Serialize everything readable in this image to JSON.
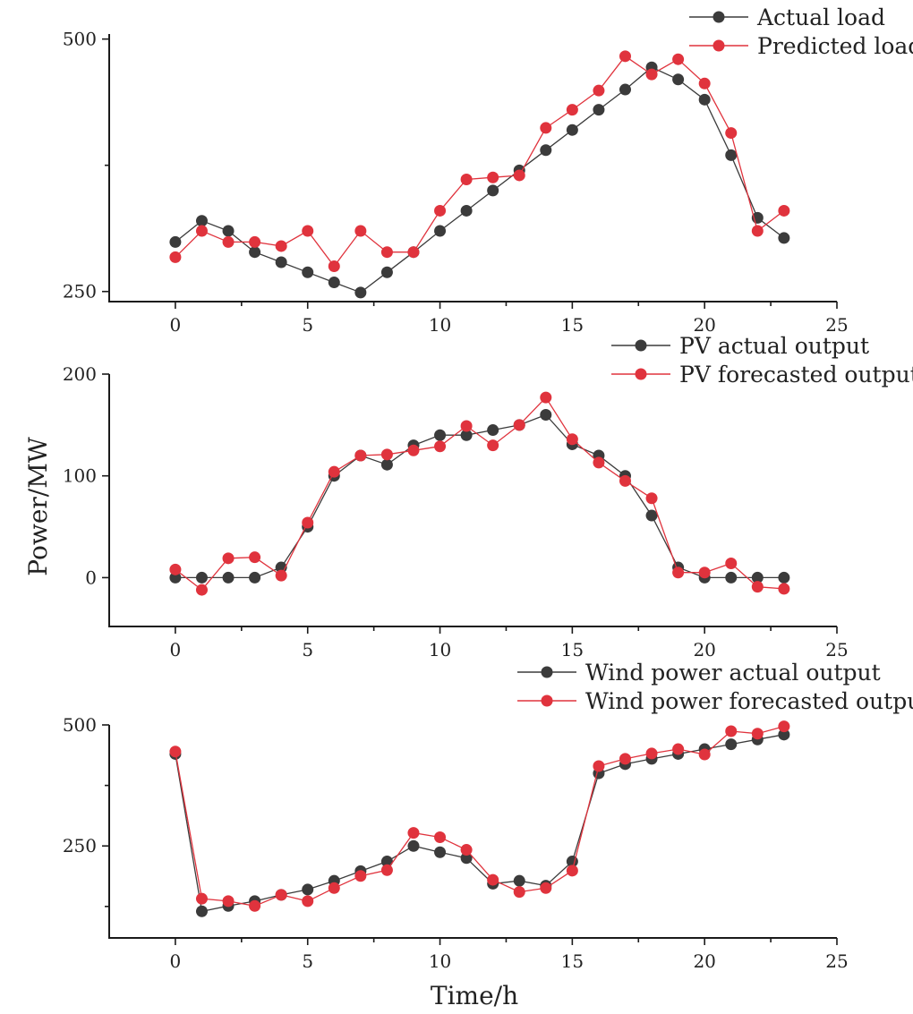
{
  "chart_data": {
    "type": "line",
    "ylabel": "Power/MW",
    "xlabel": "Time/h",
    "panels": [
      {
        "name": "load",
        "xlim": [
          -2.5,
          25
        ],
        "xticks": [
          0,
          5,
          10,
          15,
          20,
          25
        ],
        "ylim": [
          240,
          505
        ],
        "yticks": [
          250,
          500
        ],
        "minor_yticks": [
          375
        ],
        "x": [
          0,
          1,
          2,
          3,
          4,
          5,
          6,
          7,
          8,
          9,
          10,
          11,
          12,
          13,
          14,
          15,
          16,
          17,
          18,
          19,
          20,
          21,
          22,
          23
        ],
        "series": [
          {
            "name": "Actual load",
            "color": "#3b3b3b",
            "values": [
              299,
              320,
              310,
              289,
              279,
              269,
              259,
              249,
              269,
              289,
              310,
              330,
              350,
              370,
              390,
              410,
              430,
              450,
              472,
              460,
              440,
              385,
              323,
              303
            ]
          },
          {
            "name": "Predicted load",
            "color": "#e0333d",
            "values": [
              284,
              310,
              299,
              299,
              295,
              310,
              275,
              310,
              289,
              289,
              330,
              361,
              363,
              365,
              412,
              430,
              449,
              483,
              465,
              480,
              456,
              407,
              310,
              330
            ]
          }
        ]
      },
      {
        "name": "pv",
        "xlim": [
          -2.5,
          25
        ],
        "xticks": [
          0,
          5,
          10,
          15,
          20,
          25
        ],
        "ylim": [
          -48,
          200
        ],
        "yticks": [
          0,
          100,
          200
        ],
        "x": [
          0,
          1,
          2,
          3,
          4,
          5,
          6,
          7,
          8,
          9,
          10,
          11,
          12,
          13,
          14,
          15,
          16,
          17,
          18,
          19,
          20,
          21,
          22,
          23
        ],
        "series": [
          {
            "name": "PV actual output",
            "color": "#3b3b3b",
            "values": [
              0,
              0,
              0,
              0,
              10,
              50,
              100,
              120,
              111,
              130,
              140,
              140,
              145,
              150,
              160,
              131,
              120,
              100,
              61,
              10,
              0,
              0,
              0,
              0
            ]
          },
          {
            "name": "PV forecasted output",
            "color": "#e0333d",
            "values": [
              8,
              -12,
              19,
              20,
              2,
              54,
              104,
              120,
              121,
              125,
              129,
              149,
              130,
              150,
              177,
              136,
              113,
              95,
              78,
              5,
              5,
              14,
              -9,
              -11
            ]
          }
        ]
      },
      {
        "name": "wind",
        "xlim": [
          -2.5,
          25
        ],
        "xticks": [
          0,
          5,
          10,
          15,
          20,
          25
        ],
        "ylim": [
          60,
          500
        ],
        "yticks": [
          250,
          500
        ],
        "minor_yticks": [
          125,
          375
        ],
        "x": [
          0,
          1,
          2,
          3,
          4,
          5,
          6,
          7,
          8,
          9,
          10,
          11,
          12,
          13,
          14,
          15,
          16,
          17,
          18,
          19,
          20,
          21,
          22,
          23
        ],
        "series": [
          {
            "name": "Wind power actual output",
            "color": "#3b3b3b",
            "values": [
              440,
              115,
              126,
              136,
              149,
              160,
              178,
              198,
              218,
              250,
              237,
              225,
              172,
              178,
              168,
              218,
              400,
              419,
              430,
              440,
              450,
              460,
              470,
              480
            ]
          },
          {
            "name": "Wind power forecasted output",
            "color": "#e0333d",
            "values": [
              445,
              141,
              136,
              126,
              149,
              136,
              163,
              188,
              200,
              277,
              268,
              242,
              180,
              155,
              163,
              199,
              415,
              430,
              441,
              450,
              439,
              487,
              482,
              497
            ]
          }
        ]
      }
    ]
  }
}
